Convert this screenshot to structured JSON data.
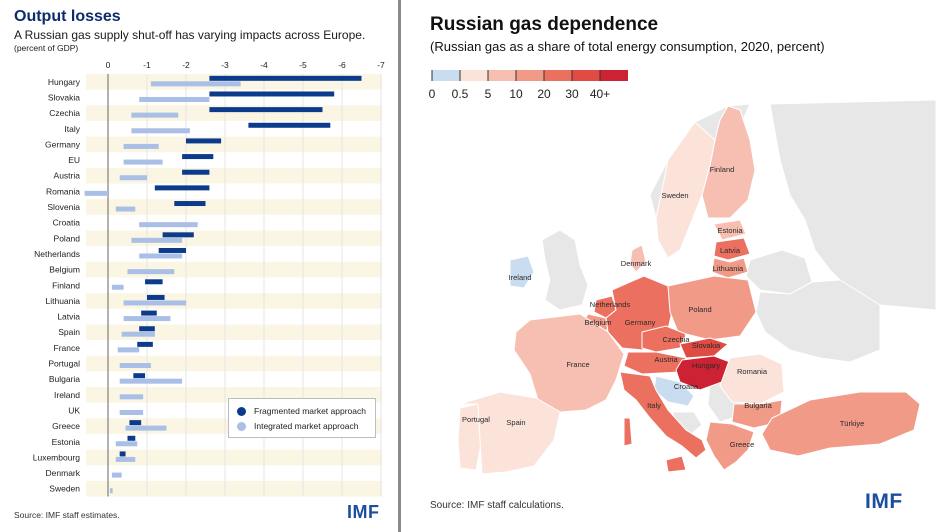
{
  "left": {
    "title": "Output losses",
    "subtitle": "A Russian gas supply shut-off has varying impacts across Europe.",
    "note": "(percent of GDP)",
    "source": "Source: IMF staff estimates.",
    "logo": "IMF"
  },
  "right": {
    "title": "Russian gas dependence",
    "subtitle": "(Russian gas as a share of total energy consumption, 2020, percent)",
    "source": "Source: IMF staff calculations.",
    "logo": "IMF"
  },
  "colors": {
    "fragmented": "#0c3b8c",
    "integrated": "#a9bfe6",
    "zero_line": "#7f7f7f",
    "grid": "#e6e6e6",
    "band": "#fbf6e3",
    "land_other": "#e7e7e7",
    "water": "#ffffff"
  },
  "chart_data": [
    {
      "type": "bar",
      "subtype": "horizontal-range",
      "title": "Output losses",
      "subtitle": "A Russian gas supply shut-off has varying impacts across Europe.",
      "unit": "percent of GDP",
      "xlim": [
        0.6,
        -7
      ],
      "xticks": [
        0,
        -1,
        -2,
        -3,
        -4,
        -5,
        -6,
        -7
      ],
      "xtick_labels": [
        "0",
        "-1",
        "-2",
        "-3",
        "-4",
        "-5",
        "-6",
        "-7"
      ],
      "grid": true,
      "legend_position": "bottom-right",
      "categories": [
        "Hungary",
        "Slovakia",
        "Czechia",
        "Italy",
        "Germany",
        "EU",
        "Austria",
        "Romania",
        "Slovenia",
        "Croatia",
        "Poland",
        "Netherlands",
        "Belgium",
        "Finland",
        "Lithuania",
        "Latvia",
        "Spain",
        "France",
        "Portugal",
        "Bulgaria",
        "Ireland",
        "UK",
        "Greece",
        "Estonia",
        "Luxembourg",
        "Denmark",
        "Sweden"
      ],
      "series": [
        {
          "name": "Fragmented market approach",
          "color": "#0c3b8c",
          "ranges": [
            [
              -2.6,
              -6.5
            ],
            [
              -2.6,
              -5.8
            ],
            [
              -2.6,
              -5.5
            ],
            [
              -3.6,
              -5.7
            ],
            [
              -2.0,
              -2.9
            ],
            [
              -1.9,
              -2.7
            ],
            [
              -1.9,
              -2.6
            ],
            [
              -1.2,
              -2.6
            ],
            [
              -1.7,
              -2.5
            ],
            null,
            [
              -1.4,
              -2.2
            ],
            [
              -1.3,
              -2.0
            ],
            null,
            [
              -0.95,
              -1.4
            ],
            [
              -1.0,
              -1.45
            ],
            [
              -0.85,
              -1.25
            ],
            [
              -0.8,
              -1.2
            ],
            [
              -0.75,
              -1.15
            ],
            null,
            [
              -0.65,
              -0.95
            ],
            null,
            null,
            [
              -0.55,
              -0.85
            ],
            [
              -0.5,
              -0.7
            ],
            [
              -0.3,
              -0.45
            ],
            null,
            null
          ]
        },
        {
          "name": "Integrated market approach",
          "color": "#a9bfe6",
          "ranges": [
            [
              -1.1,
              -3.4
            ],
            [
              -0.8,
              -2.6
            ],
            [
              -0.6,
              -1.8
            ],
            [
              -0.6,
              -2.1
            ],
            [
              -0.4,
              -1.3
            ],
            [
              -0.4,
              -1.4
            ],
            [
              -0.3,
              -1.0
            ],
            [
              0.6,
              0.0
            ],
            [
              -0.2,
              -0.7
            ],
            [
              -0.8,
              -2.3
            ],
            [
              -0.6,
              -1.9
            ],
            [
              -0.8,
              -1.9
            ],
            [
              -0.5,
              -1.7
            ],
            [
              -0.1,
              -0.4
            ],
            [
              -0.4,
              -2.0
            ],
            [
              -0.4,
              -1.6
            ],
            [
              -0.35,
              -1.2
            ],
            [
              -0.25,
              -0.8
            ],
            [
              -0.3,
              -1.1
            ],
            [
              -0.3,
              -1.9
            ],
            [
              -0.3,
              -0.9
            ],
            [
              -0.3,
              -0.9
            ],
            [
              -0.45,
              -1.5
            ],
            [
              -0.2,
              -0.75
            ],
            [
              -0.2,
              -0.7
            ],
            [
              -0.1,
              -0.35
            ],
            [
              -0.05,
              -0.12
            ]
          ]
        }
      ]
    },
    {
      "type": "choropleth",
      "title": "Russian gas dependence",
      "subtitle": "(Russian gas as a share of total energy consumption, 2020, percent)",
      "legend_position": "top-left",
      "bins": [
        "0",
        "0.5",
        "5",
        "10",
        "20",
        "30",
        "40+"
      ],
      "bin_colors": [
        "#c9dcf0",
        "#fbe3da",
        "#f7bfb2",
        "#f29a88",
        "#ec705f",
        "#e04b43",
        "#cd2233"
      ],
      "countries": [
        {
          "name": "Finland",
          "bin": 2
        },
        {
          "name": "Sweden",
          "bin": 1
        },
        {
          "name": "Estonia",
          "bin": 2
        },
        {
          "name": "Latvia",
          "bin": 4
        },
        {
          "name": "Lithuania",
          "bin": 3
        },
        {
          "name": "Denmark",
          "bin": 2
        },
        {
          "name": "Ireland",
          "bin": 0
        },
        {
          "name": "Netherlands",
          "bin": 4
        },
        {
          "name": "Belgium",
          "bin": 3
        },
        {
          "name": "Germany",
          "bin": 4
        },
        {
          "name": "Poland",
          "bin": 3
        },
        {
          "name": "Czechia",
          "bin": 4
        },
        {
          "name": "Slovakia",
          "bin": 5
        },
        {
          "name": "Austria",
          "bin": 4
        },
        {
          "name": "Hungary",
          "bin": 6
        },
        {
          "name": "France",
          "bin": 2
        },
        {
          "name": "Romania",
          "bin": 1
        },
        {
          "name": "Croatia",
          "bin": 0
        },
        {
          "name": "Italy",
          "bin": 4
        },
        {
          "name": "Bulgaria",
          "bin": 3
        },
        {
          "name": "Portugal",
          "bin": 1
        },
        {
          "name": "Spain",
          "bin": 1
        },
        {
          "name": "Greece",
          "bin": 3
        },
        {
          "name": "Türkiye",
          "bin": 3
        }
      ]
    }
  ]
}
